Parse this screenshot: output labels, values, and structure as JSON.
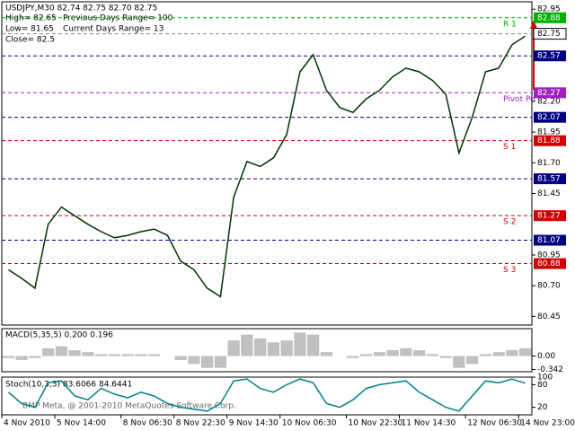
{
  "chart_data": [
    {
      "type": "line",
      "title": "USDJPY,M30  82.74 82.75 82.70 82.75",
      "annotations": [
        "High= 82.65",
        "Previous Days Range= 100",
        "Low= 81.65",
        "Current Days Range= 13",
        "Close= 82.5",
        "BMP Meta, @ 2001-2010 MetaQuotes Software Corp."
      ],
      "categories": [
        "4 Nov 2010",
        null,
        null,
        null,
        "5 Nov 14:00",
        null,
        null,
        null,
        null,
        "8 Nov 06:30",
        null,
        null,
        null,
        "8 Nov 22:30",
        null,
        null,
        null,
        "9 Nov 14:30",
        null,
        null,
        null,
        "10 Nov 06:30",
        null,
        null,
        null,
        null,
        "10 Nov 22:30",
        null,
        null,
        null,
        "11 Nov 14:30",
        null,
        null,
        null,
        null,
        "12 Nov 06:30",
        null,
        null,
        null,
        "14 Nov 23:00"
      ],
      "values": [
        80.83,
        80.76,
        80.68,
        81.2,
        81.34,
        81.27,
        81.2,
        81.14,
        81.09,
        81.11,
        81.14,
        81.16,
        81.11,
        80.9,
        80.83,
        80.68,
        80.61,
        81.42,
        81.71,
        81.67,
        81.74,
        81.93,
        82.44,
        82.58,
        82.29,
        82.15,
        82.11,
        82.22,
        82.29,
        82.4,
        82.47,
        82.44,
        82.37,
        82.26,
        81.78,
        82.07,
        82.44,
        82.47,
        82.66,
        82.73
      ],
      "color": "#003300",
      "ylim": [
        80.38,
        83.01
      ],
      "yticks": [
        82.95,
        {
          "value": 82.2,
          "label": "82.20"
        },
        81.95,
        {
          "value": 81.7,
          "label": "81.70"
        },
        81.45,
        80.95,
        {
          "value": 80.7,
          "label": "80.70"
        },
        80.45
      ],
      "levels": [
        {
          "value": 82.88,
          "color": "#00b000",
          "label": "R 1"
        },
        {
          "value": 82.75,
          "color": "#ffffff"
        },
        {
          "value": 82.57,
          "color": "#000080"
        },
        {
          "value": 82.27,
          "color": "#a020c0",
          "label": "Pivot Po"
        },
        {
          "value": 82.07,
          "color": "#000080"
        },
        {
          "value": 81.88,
          "color": "#d00000",
          "label": "S 1"
        },
        {
          "value": 81.57,
          "color": "#000080"
        },
        {
          "value": 81.27,
          "color": "#d00000",
          "label": "S 2"
        },
        {
          "value": 81.07,
          "color": "#000080"
        },
        {
          "value": 80.88,
          "color": "#d00000",
          "label": "S 3"
        }
      ]
    },
    {
      "type": "bar",
      "title": "MACD(5,35,5) 0.200 0.196",
      "values": [
        -0.05,
        -0.1,
        -0.05,
        0.2,
        0.25,
        0.15,
        0.1,
        0.05,
        0.05,
        0.05,
        0.05,
        0.05,
        0.0,
        -0.1,
        -0.2,
        -0.3,
        -0.3,
        0.4,
        0.55,
        0.45,
        0.35,
        0.4,
        0.6,
        0.55,
        0.1,
        0.0,
        -0.05,
        0.05,
        0.1,
        0.15,
        0.2,
        0.15,
        0.05,
        -0.05,
        -0.3,
        -0.2,
        0.05,
        0.1,
        0.15,
        0.2
      ],
      "color": "#c0c0c0",
      "ylim": [
        -0.4,
        0.7
      ],
      "yticks": [
        {
          "value": 0,
          "label": "0.00"
        },
        -0.342
      ]
    },
    {
      "type": "line",
      "title": "Stoch(10,3,3) 83.6066 84.6441",
      "values": [
        60,
        30,
        20,
        85,
        90,
        50,
        40,
        70,
        55,
        45,
        60,
        50,
        30,
        20,
        15,
        10,
        30,
        90,
        95,
        70,
        60,
        80,
        95,
        85,
        30,
        20,
        40,
        70,
        80,
        85,
        90,
        60,
        40,
        20,
        10,
        50,
        90,
        85,
        95,
        84
      ],
      "color": "#008080",
      "ylim": [
        0,
        100
      ],
      "yticks": [
        20,
        80,
        100
      ]
    }
  ]
}
